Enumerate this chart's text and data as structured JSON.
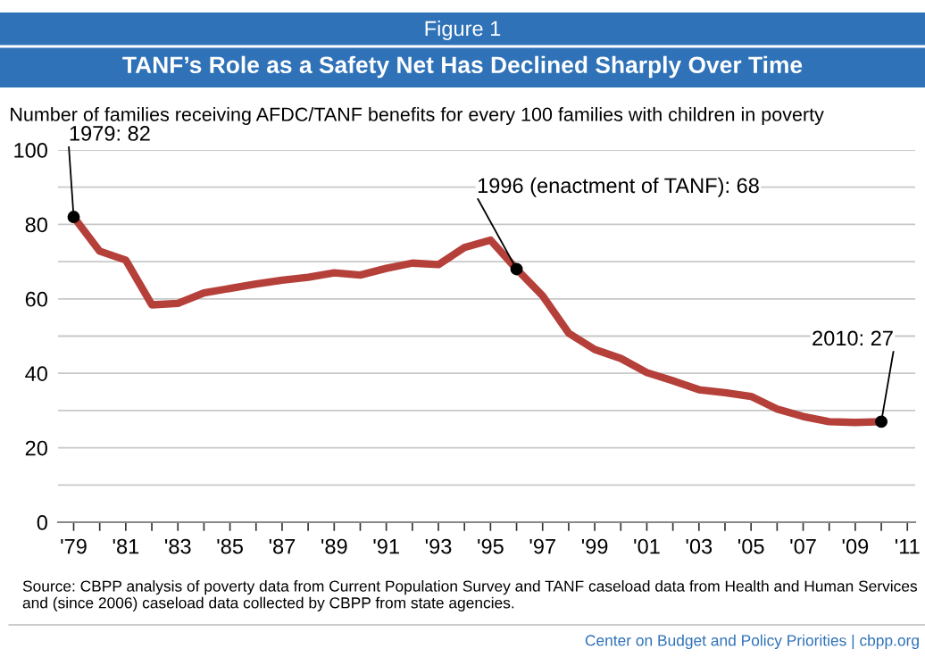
{
  "chart_data": {
    "type": "line",
    "title": "Figure 1",
    "subtitle": "TANF’s Role as a Safety Net Has Declined Sharply Over Time",
    "ylabel": "Number of families receiving AFDC/TANF benefits for every 100 families with children in poverty",
    "x": [
      1979,
      1980,
      1981,
      1982,
      1983,
      1984,
      1985,
      1986,
      1987,
      1988,
      1989,
      1990,
      1991,
      1992,
      1993,
      1994,
      1995,
      1996,
      1997,
      1998,
      1999,
      2000,
      2001,
      2002,
      2003,
      2004,
      2005,
      2006,
      2007,
      2008,
      2009,
      2010
    ],
    "series": [
      {
        "color": "#b5403a",
        "values": [
          82,
          72.8,
          70.4,
          58.4,
          58.8,
          61.6,
          62.8,
          64,
          65,
          65.8,
          67,
          66.4,
          68.2,
          69.6,
          69.2,
          73.8,
          75.8,
          68,
          60.8,
          50.8,
          46.4,
          44,
          40.2,
          38,
          35.6,
          34.8,
          33.8,
          30.4,
          28.4,
          27,
          26.8,
          27
        ]
      }
    ],
    "xlim": [
      1978.4,
      2011.3
    ],
    "xticks": [
      {
        "value": 1979,
        "label": "'79"
      },
      {
        "value": 1980,
        "label": null
      },
      {
        "value": 1981,
        "label": "'81"
      },
      {
        "value": 1982,
        "label": null
      },
      {
        "value": 1983,
        "label": "'83"
      },
      {
        "value": 1984,
        "label": null
      },
      {
        "value": 1985,
        "label": "'85"
      },
      {
        "value": 1986,
        "label": null
      },
      {
        "value": 1987,
        "label": "'87"
      },
      {
        "value": 1988,
        "label": null
      },
      {
        "value": 1989,
        "label": "'89"
      },
      {
        "value": 1990,
        "label": null
      },
      {
        "value": 1991,
        "label": "'91"
      },
      {
        "value": 1992,
        "label": null
      },
      {
        "value": 1993,
        "label": "'93"
      },
      {
        "value": 1994,
        "label": null
      },
      {
        "value": 1995,
        "label": "'95"
      },
      {
        "value": 1996,
        "label": null
      },
      {
        "value": 1997,
        "label": "'97"
      },
      {
        "value": 1998,
        "label": null
      },
      {
        "value": 1999,
        "label": "'99"
      },
      {
        "value": 2000,
        "label": null
      },
      {
        "value": 2001,
        "label": "'01"
      },
      {
        "value": 2002,
        "label": null
      },
      {
        "value": 2003,
        "label": "'03"
      },
      {
        "value": 2004,
        "label": null
      },
      {
        "value": 2005,
        "label": "'05"
      },
      {
        "value": 2006,
        "label": null
      },
      {
        "value": 2007,
        "label": "'07"
      },
      {
        "value": 2008,
        "label": null
      },
      {
        "value": 2009,
        "label": "'09"
      },
      {
        "value": 2010,
        "label": null
      },
      {
        "value": 2011,
        "label": "'11"
      }
    ],
    "ylim": [
      0,
      100
    ],
    "yticks": [
      0,
      {
        "value": 10,
        "label": null
      },
      20,
      {
        "value": 30,
        "label": null
      },
      40,
      {
        "value": 50,
        "label": null
      },
      60,
      {
        "value": 70,
        "label": null
      },
      80,
      {
        "value": 90,
        "label": null
      },
      100
    ],
    "grid": "y",
    "marker": "none",
    "line_style": "solid",
    "annotations": [
      {
        "text": "1979: 82",
        "x": 1979,
        "y": 82
      },
      {
        "text": "1996 (enactment of TANF): 68",
        "x": 1996,
        "y": 68
      },
      {
        "text": "2010: 27",
        "x": 2010,
        "y": 27
      },
      "Source: CBPP analysis of poverty data from Current Population Survey and TANF caseload data from Health and Human Services and (since 2006) caseload data collected by CBPP from state agencies.",
      "Center on Budget and Policy Priorities | cbpp.org"
    ]
  }
}
